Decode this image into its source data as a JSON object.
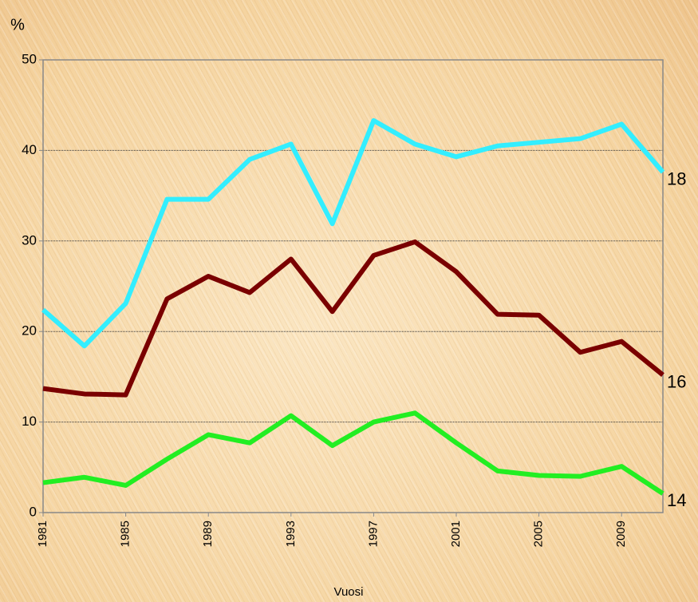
{
  "chart_data": {
    "type": "line",
    "y_label": "%",
    "x_label": "Vuosi",
    "x": [
      1981,
      1983,
      1985,
      1987,
      1989,
      1991,
      1993,
      1995,
      1997,
      1999,
      2001,
      2003,
      2005,
      2007,
      2009,
      2011
    ],
    "series": [
      {
        "name": "18",
        "color": "#33eeff",
        "values": [
          22.4,
          18.4,
          23.1,
          34.6,
          34.6,
          39.0,
          40.7,
          31.9,
          43.3,
          40.7,
          39.3,
          40.5,
          40.9,
          41.3,
          42.9,
          37.6
        ]
      },
      {
        "name": "16",
        "color": "#7a0000",
        "values": [
          13.7,
          13.1,
          13.0,
          23.6,
          26.1,
          24.3,
          28.0,
          22.2,
          28.4,
          29.9,
          26.6,
          21.9,
          21.8,
          17.7,
          18.9,
          15.2
        ]
      },
      {
        "name": "14",
        "color": "#22ee22",
        "values": [
          3.3,
          3.9,
          3.0,
          5.9,
          8.6,
          7.7,
          10.7,
          7.4,
          10.0,
          11.0,
          7.7,
          4.6,
          4.1,
          4.0,
          5.1,
          2.1
        ]
      }
    ],
    "xlim": [
      1981,
      2011
    ],
    "xticks": [
      1981,
      1985,
      1989,
      1993,
      1997,
      2001,
      2005,
      2009
    ],
    "ylim": [
      0,
      50
    ],
    "yticks": [
      0,
      10,
      20,
      30,
      40,
      50
    ],
    "grid": true
  }
}
